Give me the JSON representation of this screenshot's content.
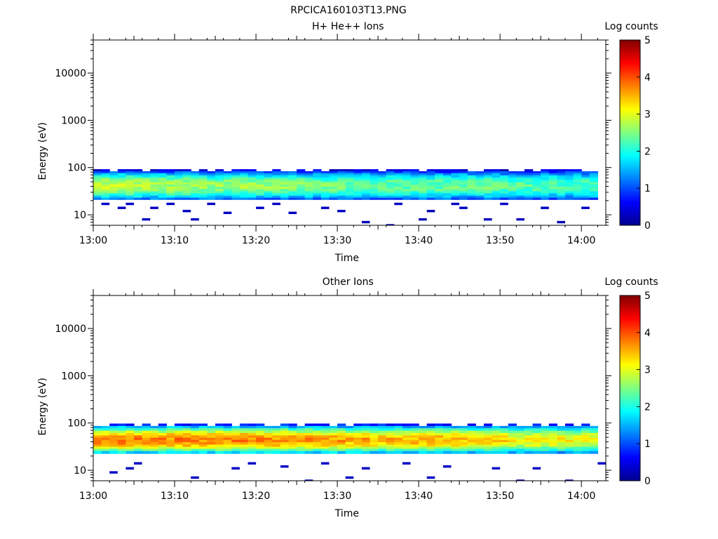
{
  "figure_title": "RPCICA160103T13.PNG",
  "colors": {
    "colormap": [
      "#00008f",
      "#0000ff",
      "#0080ff",
      "#00ffff",
      "#80ff80",
      "#ffff00",
      "#ff8000",
      "#ff0000",
      "#800000"
    ],
    "axis": "#000000"
  },
  "chart_data": [
    {
      "type": "heatmap",
      "title": "H+ He++ Ions",
      "xlabel": "Time",
      "ylabel": "Energy (eV)",
      "yscale": "log",
      "ylim": [
        6,
        50000
      ],
      "xlim": [
        "13:00",
        "14:03"
      ],
      "x_ticks": [
        "13:00",
        "13:10",
        "13:20",
        "13:30",
        "13:40",
        "13:50",
        "14:00"
      ],
      "y_ticks": [
        "10",
        "100",
        "1000",
        "10000"
      ],
      "colorbar": {
        "label": "Log counts",
        "range": [
          0,
          5
        ],
        "ticks": [
          "0",
          "1",
          "2",
          "3",
          "4",
          "5"
        ]
      },
      "time_start": "13:01",
      "time_step_minutes": 1,
      "energy_bins_eV": [
        88,
        80,
        72,
        65,
        58,
        52,
        46,
        42,
        37,
        33,
        30,
        27,
        24,
        22
      ],
      "band_peak_log_counts": [
        2.8,
        2.8,
        2.8,
        2.8,
        2.8,
        2.8,
        2.7,
        2.7,
        2.7,
        2.7,
        2.7,
        2.7,
        2.7,
        2.6,
        2.6,
        2.6,
        2.6,
        2.6,
        2.6,
        2.6,
        2.6,
        2.6,
        2.6,
        2.6,
        2.5,
        2.5,
        2.5,
        2.5,
        2.5,
        2.5,
        2.4,
        2.4,
        2.4,
        2.4,
        2.4,
        2.4,
        2.4,
        2.4,
        2.4,
        2.4,
        2.4,
        2.4,
        2.4,
        2.4,
        2.4,
        2.4,
        2.4,
        2.4,
        2.4,
        2.4,
        2.3,
        2.3,
        2.3,
        2.3,
        2.3,
        2.3,
        2.3,
        2.3,
        2.3,
        2.3,
        2.3,
        2.3
      ],
      "sparse_counts": [
        {
          "t": 1,
          "e": 17,
          "v": 0.3
        },
        {
          "t": 3,
          "e": 14,
          "v": 0.3
        },
        {
          "t": 4,
          "e": 17,
          "v": 0.3
        },
        {
          "t": 6,
          "e": 8,
          "v": 0.3
        },
        {
          "t": 7,
          "e": 14,
          "v": 0.3
        },
        {
          "t": 9,
          "e": 17,
          "v": 0.3
        },
        {
          "t": 11,
          "e": 12,
          "v": 0.3
        },
        {
          "t": 12,
          "e": 8,
          "v": 0.3
        },
        {
          "t": 14,
          "e": 17,
          "v": 0.3
        },
        {
          "t": 16,
          "e": 11,
          "v": 0.3
        },
        {
          "t": 20,
          "e": 14,
          "v": 0.3
        },
        {
          "t": 22,
          "e": 17,
          "v": 0.3
        },
        {
          "t": 24,
          "e": 11,
          "v": 0.3
        },
        {
          "t": 28,
          "e": 14,
          "v": 0.3
        },
        {
          "t": 30,
          "e": 12,
          "v": 0.3
        },
        {
          "t": 33,
          "e": 7,
          "v": 0.2
        },
        {
          "t": 36,
          "e": 6,
          "v": 0.2
        },
        {
          "t": 37,
          "e": 17,
          "v": 0.3
        },
        {
          "t": 40,
          "e": 8,
          "v": 0.2
        },
        {
          "t": 41,
          "e": 12,
          "v": 0.2
        },
        {
          "t": 44,
          "e": 17,
          "v": 0.3
        },
        {
          "t": 45,
          "e": 14,
          "v": 0.3
        },
        {
          "t": 48,
          "e": 8,
          "v": 0.3
        },
        {
          "t": 50,
          "e": 17,
          "v": 0.3
        },
        {
          "t": 52,
          "e": 8,
          "v": 0.3
        },
        {
          "t": 55,
          "e": 14,
          "v": 0.3
        },
        {
          "t": 57,
          "e": 7,
          "v": 0.2
        },
        {
          "t": 60,
          "e": 14,
          "v": 0.3
        }
      ]
    },
    {
      "type": "heatmap",
      "title": "Other Ions",
      "xlabel": "Time",
      "ylabel": "Energy (eV)",
      "yscale": "log",
      "ylim": [
        6,
        50000
      ],
      "xlim": [
        "13:00",
        "14:03"
      ],
      "x_ticks": [
        "13:00",
        "13:10",
        "13:20",
        "13:30",
        "13:40",
        "13:50",
        "14:00"
      ],
      "y_ticks": [
        "10",
        "100",
        "1000",
        "10000"
      ],
      "colorbar": {
        "label": "Log counts",
        "range": [
          0,
          5
        ],
        "ticks": [
          "0",
          "1",
          "2",
          "3",
          "4",
          "5"
        ]
      },
      "time_start": "13:01",
      "time_step_minutes": 1,
      "energy_bins_eV": [
        92,
        82,
        73,
        65,
        58,
        52,
        46,
        42,
        37,
        33,
        30,
        27,
        24
      ],
      "band_peak_log_counts": [
        3.7,
        3.7,
        3.8,
        3.8,
        3.8,
        3.8,
        3.7,
        3.7,
        3.7,
        3.7,
        3.8,
        3.8,
        3.7,
        3.7,
        3.7,
        3.7,
        3.7,
        3.8,
        3.8,
        3.7,
        3.7,
        3.7,
        3.7,
        3.7,
        3.6,
        3.6,
        3.7,
        3.7,
        3.6,
        3.6,
        3.6,
        3.5,
        3.5,
        3.6,
        3.5,
        3.5,
        3.5,
        3.5,
        3.5,
        3.5,
        3.5,
        3.5,
        3.5,
        3.5,
        3.5,
        3.5,
        3.4,
        3.4,
        3.4,
        3.4,
        3.3,
        3.2,
        3.1,
        3.1,
        3.1,
        3.1,
        3.1,
        3.1,
        3.1,
        3.1,
        3.1,
        3.1
      ],
      "sparse_counts": [
        {
          "t": 2,
          "e": 9,
          "v": 0.3
        },
        {
          "t": 4,
          "e": 11,
          "v": 0.3
        },
        {
          "t": 5,
          "e": 14,
          "v": 0.3
        },
        {
          "t": 12,
          "e": 7,
          "v": 0.3
        },
        {
          "t": 17,
          "e": 11,
          "v": 0.3
        },
        {
          "t": 19,
          "e": 14,
          "v": 0.3
        },
        {
          "t": 23,
          "e": 12,
          "v": 0.3
        },
        {
          "t": 26,
          "e": 6,
          "v": 0.2
        },
        {
          "t": 28,
          "e": 14,
          "v": 0.3
        },
        {
          "t": 31,
          "e": 7,
          "v": 0.3
        },
        {
          "t": 33,
          "e": 11,
          "v": 0.3
        },
        {
          "t": 38,
          "e": 14,
          "v": 0.3
        },
        {
          "t": 41,
          "e": 7,
          "v": 0.3
        },
        {
          "t": 43,
          "e": 12,
          "v": 0.3
        },
        {
          "t": 49,
          "e": 11,
          "v": 0.3
        },
        {
          "t": 52,
          "e": 6,
          "v": 0.2
        },
        {
          "t": 54,
          "e": 11,
          "v": 0.3
        },
        {
          "t": 58,
          "e": 6,
          "v": 0.2
        },
        {
          "t": 62,
          "e": 14,
          "v": 0.3
        }
      ]
    }
  ]
}
